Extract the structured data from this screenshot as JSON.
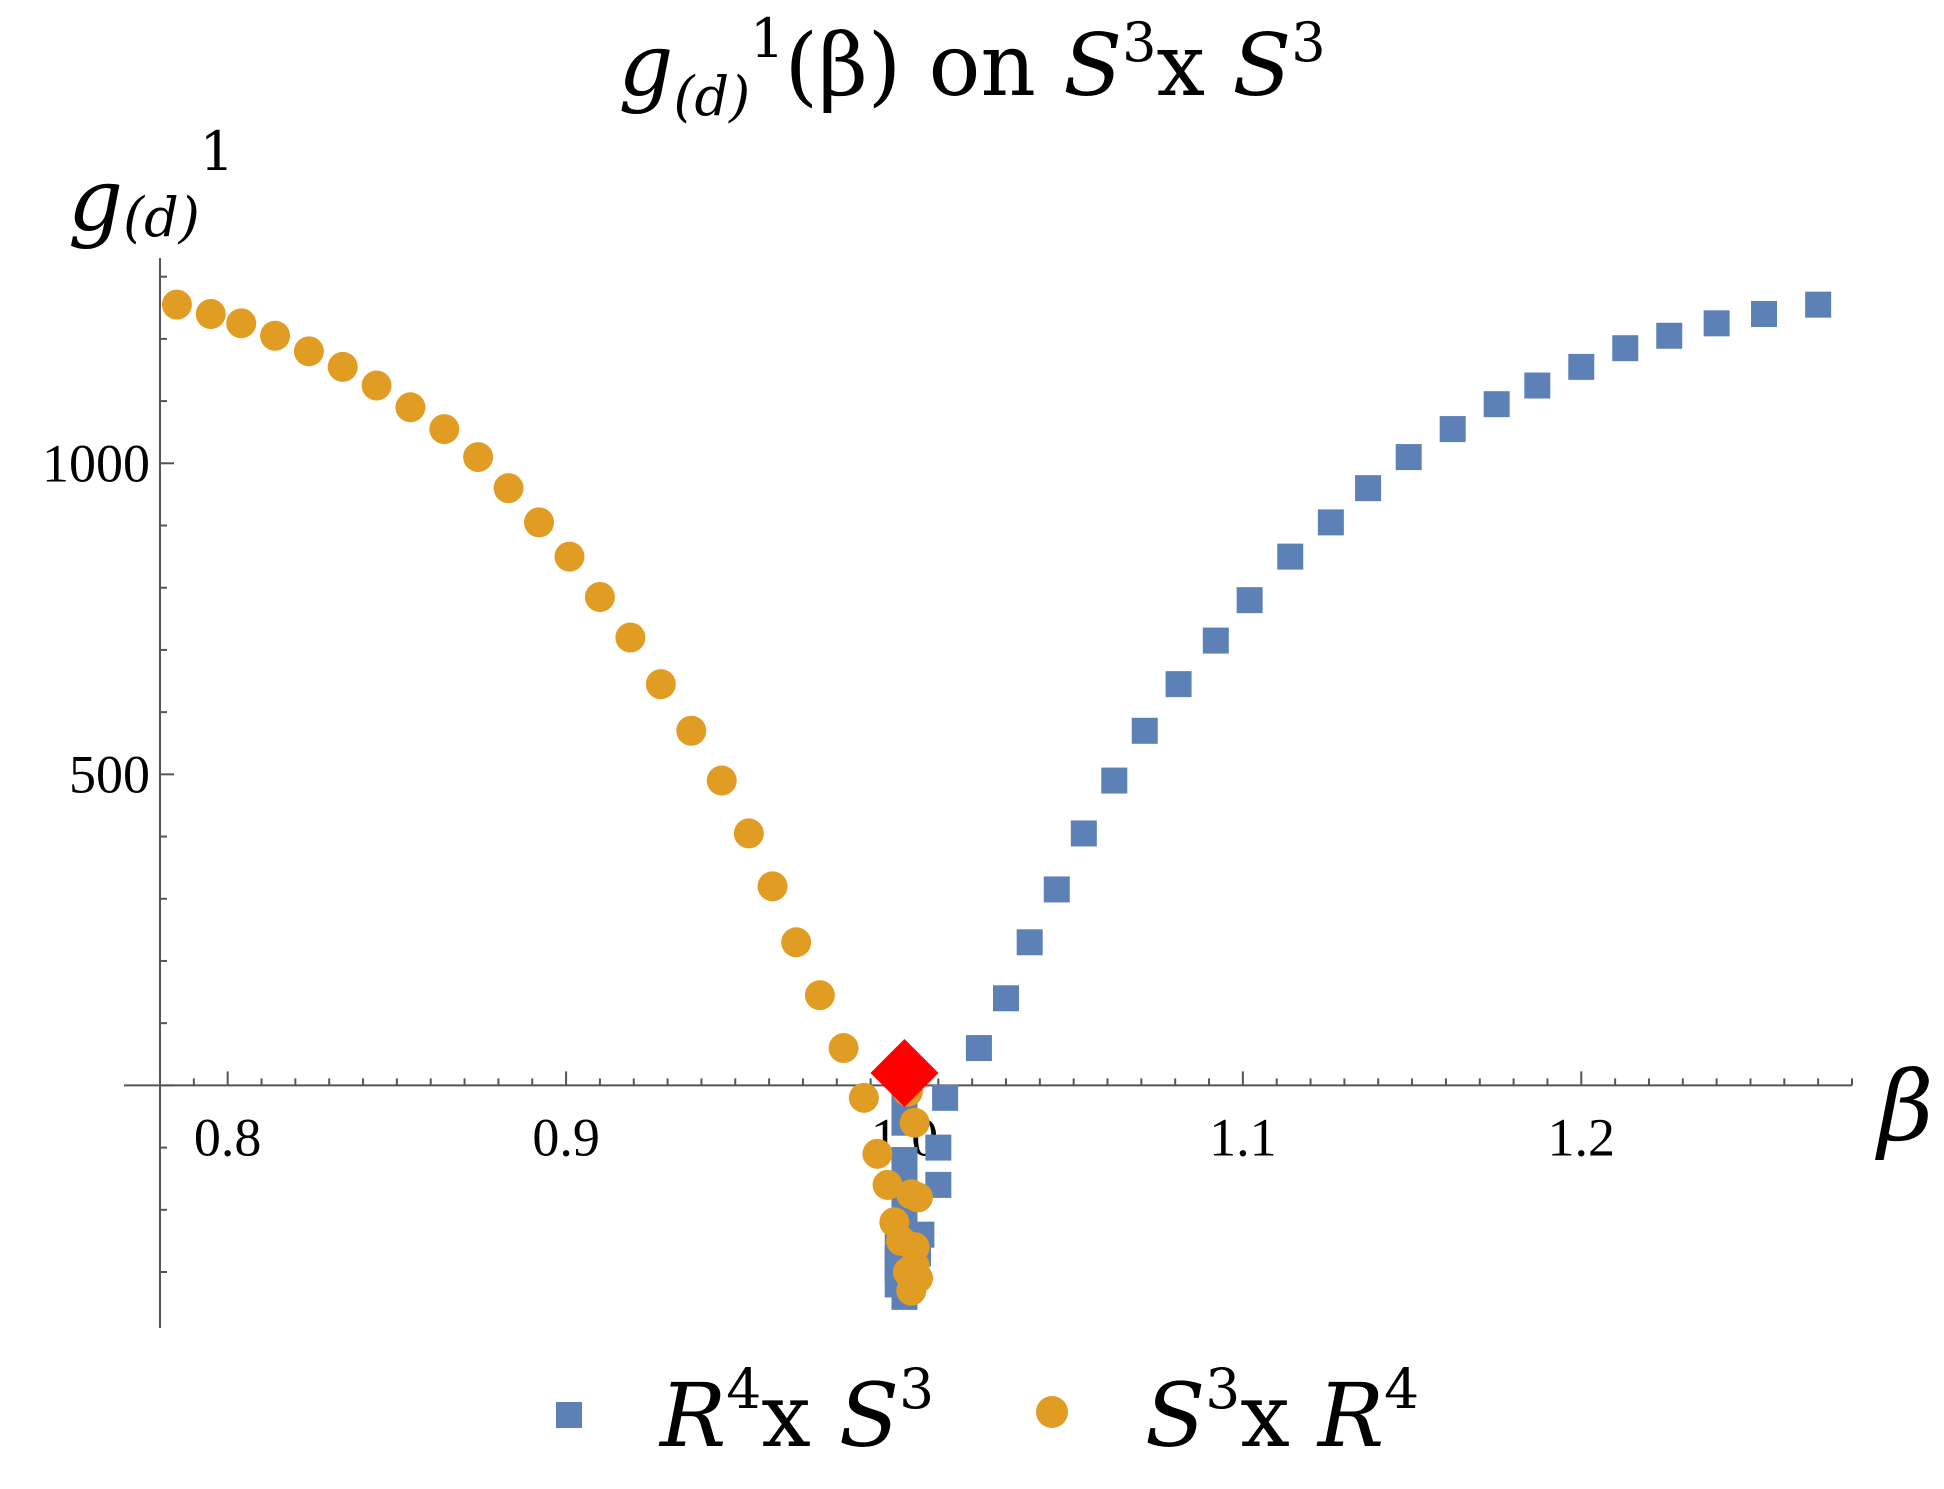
{
  "chart_data": {
    "type": "scatter",
    "title": {
      "base": "g",
      "sub": "(d)",
      "sup": "1",
      "arg": "(β) on ",
      "m1": "S",
      "m1sup": "3",
      "mid": "x ",
      "m2": "S",
      "m2sup": "3"
    },
    "ylabel": {
      "base": "g",
      "sub": "(d)",
      "sup": "1"
    },
    "xlabel": "β",
    "xlim": [
      0.78,
      1.28
    ],
    "ylim": [
      -390,
      1330
    ],
    "x_ticks": [
      {
        "v": 0.8,
        "label": "0.8"
      },
      {
        "v": 0.9,
        "label": "0.9"
      },
      {
        "v": 1.0,
        "label": "1.0"
      },
      {
        "v": 1.1,
        "label": "1.1"
      },
      {
        "v": 1.2,
        "label": "1.2"
      }
    ],
    "y_ticks": [
      {
        "v": 500,
        "label": "500"
      },
      {
        "v": 1000,
        "label": "1000"
      }
    ],
    "grid": false,
    "legend_position": "bottom",
    "colors": {
      "series1": "#5d81b6",
      "series2": "#e19c24",
      "special": "#ff0000"
    },
    "series": [
      {
        "marker": "square",
        "legend": {
          "m1": "R",
          "m1sup": "4",
          "mid": "x ",
          "m2": "S",
          "m2sup": "3"
        },
        "points": [
          [
            1.0,
            -30
          ],
          [
            1.0,
            -60
          ],
          [
            1.0,
            -120
          ],
          [
            1.0,
            -160
          ],
          [
            1.0,
            -200
          ],
          [
            1.0,
            -230
          ],
          [
            0.998,
            -260
          ],
          [
            0.998,
            -280
          ],
          [
            0.998,
            -300
          ],
          [
            0.998,
            -320
          ],
          [
            1.0,
            -340
          ],
          [
            1.002,
            -310
          ],
          [
            1.004,
            -270
          ],
          [
            1.005,
            -240
          ],
          [
            1.01,
            -100
          ],
          [
            1.01,
            -160
          ],
          [
            1.012,
            -20
          ],
          [
            1.022,
            60
          ],
          [
            1.03,
            140
          ],
          [
            1.037,
            230
          ],
          [
            1.045,
            315
          ],
          [
            1.053,
            405
          ],
          [
            1.062,
            490
          ],
          [
            1.071,
            570
          ],
          [
            1.081,
            645
          ],
          [
            1.092,
            715
          ],
          [
            1.102,
            780
          ],
          [
            1.114,
            850
          ],
          [
            1.126,
            905
          ],
          [
            1.137,
            960
          ],
          [
            1.149,
            1010
          ],
          [
            1.162,
            1055
          ],
          [
            1.175,
            1095
          ],
          [
            1.187,
            1125
          ],
          [
            1.2,
            1155
          ],
          [
            1.213,
            1185
          ],
          [
            1.226,
            1205
          ],
          [
            1.24,
            1225
          ],
          [
            1.254,
            1240
          ],
          [
            1.27,
            1255
          ]
        ]
      },
      {
        "marker": "circle",
        "legend": {
          "m1": "S",
          "m1sup": "3",
          "mid": "x ",
          "m2": "R",
          "m2sup": "4"
        },
        "points": [
          [
            0.785,
            1255
          ],
          [
            0.795,
            1240
          ],
          [
            0.804,
            1225
          ],
          [
            0.814,
            1205
          ],
          [
            0.824,
            1180
          ],
          [
            0.834,
            1155
          ],
          [
            0.844,
            1125
          ],
          [
            0.854,
            1090
          ],
          [
            0.864,
            1055
          ],
          [
            0.874,
            1010
          ],
          [
            0.883,
            960
          ],
          [
            0.892,
            905
          ],
          [
            0.901,
            850
          ],
          [
            0.91,
            785
          ],
          [
            0.919,
            720
          ],
          [
            0.928,
            645
          ],
          [
            0.937,
            570
          ],
          [
            0.946,
            490
          ],
          [
            0.954,
            405
          ],
          [
            0.961,
            320
          ],
          [
            0.968,
            230
          ],
          [
            0.975,
            145
          ],
          [
            0.982,
            60
          ],
          [
            0.988,
            -20
          ],
          [
            0.992,
            -110
          ],
          [
            0.995,
            -160
          ],
          [
            0.997,
            -220
          ],
          [
            0.999,
            -250
          ],
          [
            1.001,
            -300
          ],
          [
            1.002,
            -330
          ],
          [
            1.003,
            -290
          ],
          [
            1.003,
            -260
          ],
          [
            1.002,
            -175
          ],
          [
            1.003,
            -60
          ],
          [
            1.001,
            -10
          ],
          [
            1.004,
            -180
          ],
          [
            1.004,
            -310
          ]
        ]
      }
    ],
    "special_point": {
      "x": 1.0,
      "y": 20,
      "marker": "diamond"
    }
  }
}
